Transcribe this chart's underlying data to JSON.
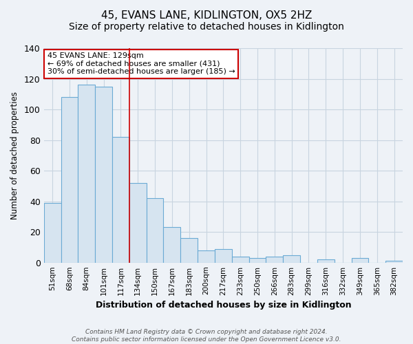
{
  "title": "45, EVANS LANE, KIDLINGTON, OX5 2HZ",
  "subtitle": "Size of property relative to detached houses in Kidlington",
  "xlabel": "Distribution of detached houses by size in Kidlington",
  "ylabel": "Number of detached properties",
  "bar_labels": [
    "51sqm",
    "68sqm",
    "84sqm",
    "101sqm",
    "117sqm",
    "134sqm",
    "150sqm",
    "167sqm",
    "183sqm",
    "200sqm",
    "217sqm",
    "233sqm",
    "250sqm",
    "266sqm",
    "283sqm",
    "299sqm",
    "316sqm",
    "332sqm",
    "349sqm",
    "365sqm",
    "382sqm"
  ],
  "bar_values": [
    39,
    108,
    116,
    115,
    82,
    52,
    42,
    23,
    16,
    8,
    9,
    4,
    3,
    4,
    5,
    0,
    2,
    0,
    3,
    0,
    1
  ],
  "bar_color": "#d6e4f0",
  "bar_edge_color": "#6aaad4",
  "ylim": [
    0,
    140
  ],
  "yticks": [
    0,
    20,
    40,
    60,
    80,
    100,
    120,
    140
  ],
  "vline_x_idx": 5,
  "vline_color": "#cc0000",
  "annotation_title": "45 EVANS LANE: 129sqm",
  "annotation_line1": "← 69% of detached houses are smaller (431)",
  "annotation_line2": "30% of semi-detached houses are larger (185) →",
  "annotation_box_edge_color": "#cc0000",
  "annotation_box_fill": "#ffffff",
  "footer_line1": "Contains HM Land Registry data © Crown copyright and database right 2024.",
  "footer_line2": "Contains public sector information licensed under the Open Government Licence v3.0.",
  "background_color": "#eef2f7",
  "plot_bg_color": "#eef2f7",
  "grid_color": "#c8d4e0",
  "title_fontsize": 11,
  "subtitle_fontsize": 10
}
